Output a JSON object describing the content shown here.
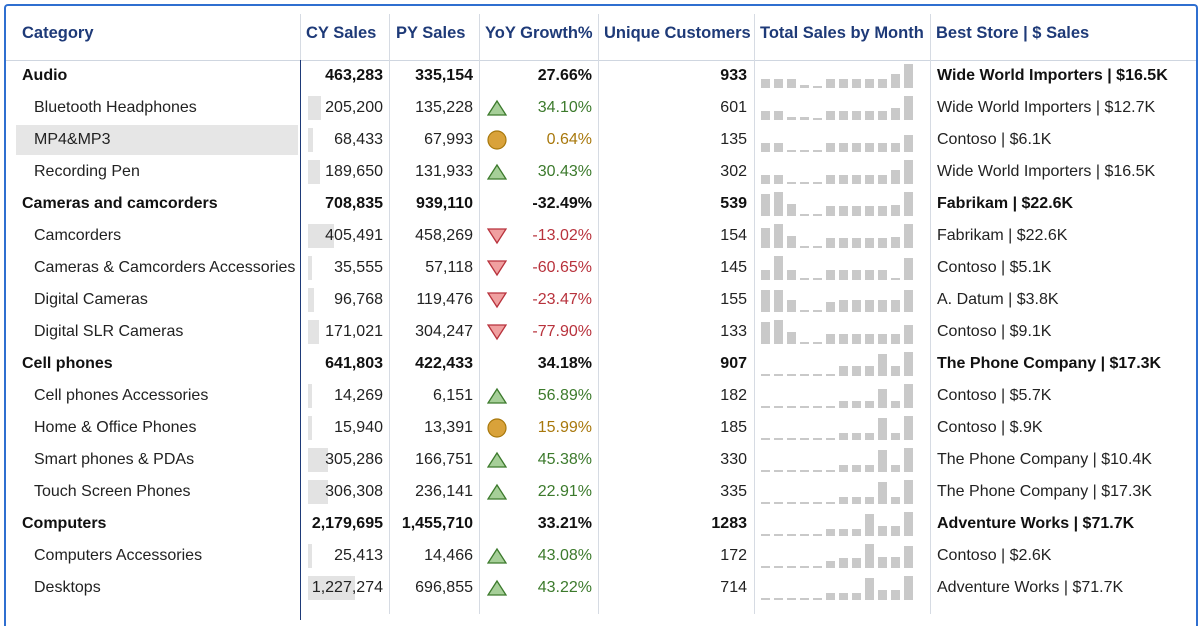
{
  "columns": {
    "category": "Category",
    "cy": "CY Sales",
    "py": "PY Sales",
    "yoy": "YoY Growth%",
    "uc": "Unique Customers",
    "tsm": "Total Sales by Month",
    "best": "Best Store | $ Sales"
  },
  "colors": {
    "positive": "#3c7a2c",
    "neutral": "#a8780c",
    "negative": "#b8323c",
    "header": "#1e3a78"
  },
  "rows": [
    {
      "type": "group",
      "category": "Audio",
      "cy": "463,283",
      "py": "335,154",
      "yoy": "27.66%",
      "uc": "933",
      "best": "Wide World Importers | $16.5K",
      "spark": [
        0.38,
        0.38,
        0.38,
        0.12,
        0.1,
        0.38,
        0.38,
        0.38,
        0.38,
        0.38,
        0.6,
        1.0
      ]
    },
    {
      "type": "item",
      "category": "Bluetooth Headphones",
      "cy": "205,200",
      "cy_share": 0.17,
      "py": "135,228",
      "status": "up",
      "yoy": "34.10%",
      "uc": "601",
      "best": "Wide World Importers | $12.7K",
      "spark": [
        0.38,
        0.38,
        0.12,
        0.12,
        0.1,
        0.38,
        0.38,
        0.38,
        0.38,
        0.38,
        0.5,
        1.0
      ]
    },
    {
      "type": "item",
      "selected": true,
      "category": "MP4&MP3",
      "cy": "68,433",
      "cy_share": 0.06,
      "py": "67,993",
      "status": "flat",
      "yoy": "0.64%",
      "uc": "135",
      "best": "Contoso | $6.1K",
      "spark": [
        0.38,
        0.38,
        0.1,
        0.1,
        0.1,
        0.38,
        0.38,
        0.38,
        0.38,
        0.38,
        0.38,
        0.7
      ]
    },
    {
      "type": "item",
      "category": "Recording Pen",
      "cy": "189,650",
      "cy_share": 0.16,
      "py": "131,933",
      "status": "up",
      "yoy": "30.43%",
      "uc": "302",
      "best": "Wide World Importers | $16.5K",
      "spark": [
        0.38,
        0.38,
        0.1,
        0.1,
        0.1,
        0.38,
        0.38,
        0.38,
        0.38,
        0.38,
        0.6,
        1.0
      ]
    },
    {
      "type": "group",
      "category": "Cameras and camcorders",
      "cy": "708,835",
      "py": "939,110",
      "yoy": "-32.49%",
      "uc": "539",
      "best": "Fabrikam | $22.6K",
      "spark": [
        0.9,
        1.0,
        0.5,
        0.1,
        0.1,
        0.4,
        0.4,
        0.4,
        0.4,
        0.4,
        0.45,
        1.0
      ]
    },
    {
      "type": "item",
      "category": "Camcorders",
      "cy": "405,491",
      "cy_share": 0.33,
      "py": "458,269",
      "status": "down",
      "yoy": "-13.02%",
      "uc": "154",
      "best": "Fabrikam | $22.6K",
      "spark": [
        0.85,
        1.0,
        0.5,
        0.1,
        0.1,
        0.4,
        0.4,
        0.4,
        0.4,
        0.4,
        0.45,
        1.0
      ]
    },
    {
      "type": "item",
      "category": "Cameras & Camcorders Accessories",
      "cy": "35,555",
      "cy_share": 0.03,
      "py": "57,118",
      "status": "down",
      "yoy": "-60.65%",
      "uc": "145",
      "best": "Contoso | $5.1K",
      "spark": [
        0.4,
        1.0,
        0.4,
        0.1,
        0.1,
        0.4,
        0.4,
        0.4,
        0.4,
        0.4,
        0.1,
        0.9
      ]
    },
    {
      "type": "item",
      "category": "Digital Cameras",
      "cy": "96,768",
      "cy_share": 0.08,
      "py": "119,476",
      "status": "down",
      "yoy": "-23.47%",
      "uc": "155",
      "best": "A. Datum | $3.8K",
      "spark": [
        0.9,
        0.9,
        0.5,
        0.1,
        0.1,
        0.4,
        0.5,
        0.5,
        0.5,
        0.5,
        0.5,
        0.9
      ]
    },
    {
      "type": "item",
      "category": "Digital SLR Cameras",
      "cy": "171,021",
      "cy_share": 0.14,
      "py": "304,247",
      "status": "down",
      "yoy": "-77.90%",
      "uc": "133",
      "best": "Contoso | $9.1K",
      "spark": [
        0.9,
        1.0,
        0.5,
        0.1,
        0.1,
        0.4,
        0.4,
        0.4,
        0.4,
        0.4,
        0.4,
        0.8
      ]
    },
    {
      "type": "group",
      "category": "Cell phones",
      "cy": "641,803",
      "py": "422,433",
      "yoy": "34.18%",
      "uc": "907",
      "best": "The Phone Company | $17.3K",
      "spark": [
        0.1,
        0.1,
        0.1,
        0.1,
        0.1,
        0.1,
        0.4,
        0.4,
        0.4,
        0.9,
        0.4,
        1.0
      ]
    },
    {
      "type": "item",
      "category": "Cell phones Accessories",
      "cy": "14,269",
      "cy_share": 0.01,
      "py": "6,151",
      "status": "up",
      "yoy": "56.89%",
      "uc": "182",
      "best": "Contoso | $5.7K",
      "spark": [
        0.1,
        0.1,
        0.1,
        0.1,
        0.1,
        0.1,
        0.3,
        0.3,
        0.3,
        0.8,
        0.3,
        1.0
      ]
    },
    {
      "type": "item",
      "category": "Home & Office Phones",
      "cy": "15,940",
      "cy_share": 0.01,
      "py": "13,391",
      "status": "flat",
      "yoy": "15.99%",
      "uc": "185",
      "best": "Contoso | $.9K",
      "spark": [
        0.1,
        0.1,
        0.1,
        0.1,
        0.1,
        0.1,
        0.3,
        0.3,
        0.3,
        0.9,
        0.3,
        1.0
      ]
    },
    {
      "type": "item",
      "category": "Smart phones & PDAs",
      "cy": "305,286",
      "cy_share": 0.25,
      "py": "166,751",
      "status": "up",
      "yoy": "45.38%",
      "uc": "330",
      "best": "The Phone Company | $10.4K",
      "spark": [
        0.1,
        0.1,
        0.1,
        0.1,
        0.1,
        0.1,
        0.3,
        0.3,
        0.3,
        0.9,
        0.3,
        1.0
      ]
    },
    {
      "type": "item",
      "category": "Touch Screen Phones",
      "cy": "306,308",
      "cy_share": 0.25,
      "py": "236,141",
      "status": "up",
      "yoy": "22.91%",
      "uc": "335",
      "best": "The Phone Company | $17.3K",
      "spark": [
        0.1,
        0.1,
        0.1,
        0.1,
        0.1,
        0.1,
        0.3,
        0.3,
        0.3,
        0.9,
        0.3,
        1.0
      ]
    },
    {
      "type": "group",
      "category": "Computers",
      "cy": "2,179,695",
      "py": "1,455,710",
      "yoy": "33.21%",
      "uc": "1283",
      "best": "Adventure Works | $71.7K",
      "spark": [
        0.1,
        0.1,
        0.1,
        0.1,
        0.1,
        0.3,
        0.3,
        0.3,
        0.9,
        0.4,
        0.4,
        1.0
      ]
    },
    {
      "type": "item",
      "category": "Computers Accessories",
      "cy": "25,413",
      "cy_share": 0.02,
      "py": "14,466",
      "status": "up",
      "yoy": "43.08%",
      "uc": "172",
      "best": "Contoso | $2.6K",
      "spark": [
        0.1,
        0.1,
        0.1,
        0.1,
        0.1,
        0.3,
        0.4,
        0.4,
        1.0,
        0.45,
        0.45,
        0.9
      ]
    },
    {
      "type": "item",
      "category": "Desktops",
      "cy": "1,227,274",
      "cy_share": 0.6,
      "py": "696,855",
      "status": "up",
      "yoy": "43.22%",
      "uc": "714",
      "best": "Adventure Works | $71.7K",
      "spark": [
        0.1,
        0.1,
        0.1,
        0.1,
        0.1,
        0.3,
        0.3,
        0.3,
        0.9,
        0.4,
        0.4,
        1.0
      ]
    }
  ]
}
